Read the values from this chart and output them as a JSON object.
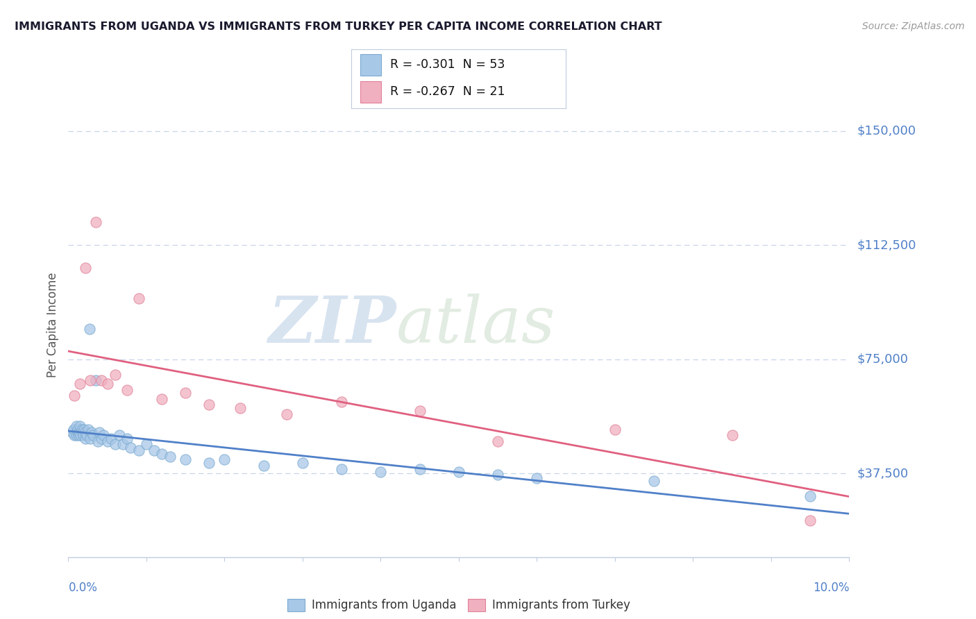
{
  "title": "IMMIGRANTS FROM UGANDA VS IMMIGRANTS FROM TURKEY PER CAPITA INCOME CORRELATION CHART",
  "source": "Source: ZipAtlas.com",
  "ylabel": "Per Capita Income",
  "xlim": [
    0.0,
    10.0
  ],
  "ylim": [
    10000,
    162500
  ],
  "yticks": [
    37500,
    75000,
    112500,
    150000
  ],
  "ytick_labels": [
    "$37,500",
    "$75,000",
    "$112,500",
    "$150,000"
  ],
  "uganda_r": "-0.301",
  "uganda_n": "53",
  "turkey_r": "-0.267",
  "turkey_n": "21",
  "uganda_color": "#a8c8e8",
  "turkey_color": "#f0b0c0",
  "uganda_edge_color": "#7aaad0",
  "turkey_edge_color": "#e08098",
  "uganda_line_color": "#5080c8",
  "turkey_line_color": "#e06080",
  "watermark_zip": "ZIP",
  "watermark_atlas": "atlas",
  "background_color": "#ffffff",
  "grid_color": "#c8d4e8",
  "axis_color": "#5080c8",
  "title_color": "#1a1a2e",
  "source_color": "#999999",
  "legend_label_1": "Immigrants from Uganda",
  "legend_label_2": "Immigrants from Turkey",
  "uganda_x": [
    0.05,
    0.07,
    0.08,
    0.1,
    0.1,
    0.12,
    0.12,
    0.13,
    0.14,
    0.15,
    0.16,
    0.17,
    0.18,
    0.19,
    0.2,
    0.22,
    0.22,
    0.24,
    0.25,
    0.27,
    0.28,
    0.3,
    0.32,
    0.35,
    0.38,
    0.4,
    0.42,
    0.45,
    0.5,
    0.55,
    0.6,
    0.65,
    0.7,
    0.75,
    0.8,
    0.9,
    1.0,
    1.1,
    1.2,
    1.3,
    1.5,
    1.8,
    2.0,
    2.5,
    3.0,
    3.5,
    4.0,
    4.5,
    5.0,
    5.5,
    6.0,
    7.5,
    9.5
  ],
  "uganda_y": [
    51000,
    52000,
    50000,
    53000,
    50000,
    51000,
    52000,
    50000,
    51000,
    53000,
    50000,
    52000,
    51000,
    50000,
    52000,
    49000,
    51000,
    50000,
    52000,
    85000,
    49000,
    51000,
    50000,
    68000,
    48000,
    51000,
    49000,
    50000,
    48000,
    49000,
    47000,
    50000,
    47000,
    49000,
    46000,
    45000,
    47000,
    45000,
    44000,
    43000,
    42000,
    41000,
    42000,
    40000,
    41000,
    39000,
    38000,
    39000,
    38000,
    37000,
    36000,
    35000,
    30000
  ],
  "turkey_x": [
    0.08,
    0.15,
    0.22,
    0.28,
    0.35,
    0.42,
    0.5,
    0.6,
    0.75,
    0.9,
    1.2,
    1.5,
    1.8,
    2.2,
    2.8,
    3.5,
    4.5,
    5.5,
    7.0,
    8.5,
    9.5
  ],
  "turkey_y": [
    63000,
    67000,
    105000,
    68000,
    120000,
    68000,
    67000,
    70000,
    65000,
    95000,
    62000,
    64000,
    60000,
    59000,
    57000,
    61000,
    58000,
    48000,
    52000,
    50000,
    22000
  ]
}
